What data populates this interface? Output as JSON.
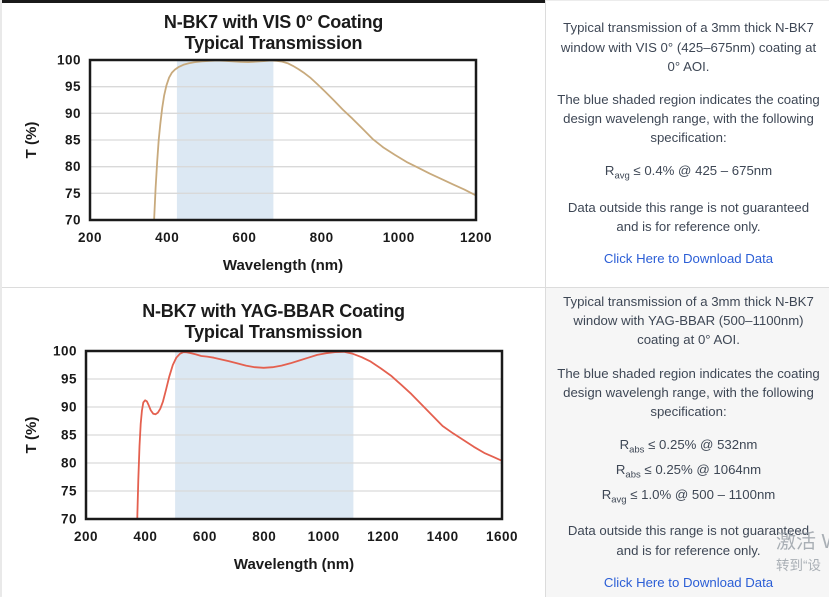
{
  "colors": {
    "shade": "#dce8f3",
    "grid": "#d9d9d9",
    "frame": "#1a1a1a",
    "curve_vis": "#c8aa7d",
    "curve_yag": "#e4604f",
    "link": "#2b5ed6",
    "body_text": "#3e4755",
    "shaded_panel_bg": "#f6f6f6"
  },
  "panels": {
    "vis": {
      "title_line1": "N-BK7 with VIS 0° Coating",
      "title_line2": "Typical Transmission",
      "desc_p1": "Typical transmission of a 3mm thick N-BK7 window with VIS 0° (425–675nm) coating at 0° AOI.",
      "desc_p2": "The blue shaded region indicates the coating design wavelengh range, with the following specification:",
      "specs": [
        {
          "r": "R",
          "sub": "avg",
          "rest": " ≤ 0.4% @ 425 – 675nm"
        }
      ],
      "desc_p3": "Data outside this range is not guaranteed and is for reference only.",
      "link_label": "Click Here to Download Data"
    },
    "yag": {
      "title_line1": "N-BK7 with YAG-BBAR Coating",
      "title_line2": "Typical Transmission",
      "desc_p1": "Typical transmission of a 3mm thick N-BK7 window with YAG-BBAR (500–1100nm) coating at 0° AOI.",
      "desc_p2": "The blue shaded region indicates the coating design wavelengh range, with the following specification:",
      "specs": [
        {
          "r": "R",
          "sub": "abs",
          "rest": " ≤ 0.25% @ 532nm"
        },
        {
          "r": "R",
          "sub": "abs",
          "rest": " ≤ 0.25% @ 1064nm"
        },
        {
          "r": "R",
          "sub": "avg",
          "rest": " ≤ 1.0% @ 500 – 1100nm"
        }
      ],
      "desc_p3": "Data outside this range is not guaranteed and is for reference only.",
      "link_label": "Click Here to Download Data"
    }
  },
  "watermark": {
    "line1": "激活 W",
    "line2": "转到“设"
  },
  "chart_data": [
    {
      "type": "line",
      "title": "N-BK7 with VIS 0° Coating — Typical Transmission",
      "xlabel": "Wavelength (nm)",
      "ylabel": "T (%)",
      "xlim": [
        200,
        1200
      ],
      "ylim": [
        70,
        100
      ],
      "x_ticks": [
        200,
        400,
        600,
        800,
        1000,
        1200
      ],
      "y_ticks": [
        70,
        75,
        80,
        85,
        90,
        95,
        100
      ],
      "grid": true,
      "legend": "none",
      "shaded_region_nm": [
        425,
        675
      ],
      "series": [
        {
          "name": "VIS 0° coating transmission",
          "color": "#c8aa7d",
          "x": [
            364,
            366,
            370,
            374,
            378,
            382,
            387,
            392,
            398,
            405,
            412,
            420,
            430,
            442,
            456,
            472,
            490,
            510,
            530,
            550,
            570,
            590,
            610,
            630,
            650,
            668,
            684,
            698,
            712,
            726,
            740,
            756,
            772,
            790,
            810,
            832,
            855,
            880,
            905,
            932,
            960,
            990,
            1020,
            1050,
            1080,
            1110,
            1140,
            1170,
            1200
          ],
          "y": [
            66,
            70,
            76,
            81,
            85,
            88,
            91,
            93.3,
            95.2,
            96.7,
            97.6,
            98.2,
            98.7,
            99.1,
            99.4,
            99.6,
            99.75,
            99.85,
            99.9,
            99.85,
            99.75,
            99.65,
            99.6,
            99.7,
            99.8,
            99.9,
            99.85,
            99.7,
            99.4,
            98.9,
            98.3,
            97.5,
            96.6,
            95.4,
            94,
            92.4,
            90.7,
            89,
            87.2,
            85.2,
            83.6,
            82.2,
            80.9,
            79.8,
            78.7,
            77.7,
            76.7,
            75.7,
            74.6
          ]
        }
      ]
    },
    {
      "type": "line",
      "title": "N-BK7 with YAG-BBAR Coating — Typical Transmission",
      "xlabel": "Wavelength (nm)",
      "ylabel": "T (%)",
      "xlim": [
        200,
        1600
      ],
      "ylim": [
        70,
        100
      ],
      "x_ticks": [
        200,
        400,
        600,
        800,
        1000,
        1200,
        1400,
        1600
      ],
      "y_ticks": [
        70,
        75,
        80,
        85,
        90,
        95,
        100
      ],
      "grid": true,
      "legend": "none",
      "shaded_region_nm": [
        500,
        1100
      ],
      "series": [
        {
          "name": "YAG-BBAR coating transmission",
          "color": "#e4604f",
          "x": [
            371,
            373,
            376,
            380,
            384,
            388,
            393,
            399,
            405,
            411,
            418,
            426,
            434,
            442,
            450,
            459,
            469,
            480,
            492,
            504,
            516,
            528,
            540,
            554,
            570,
            588,
            608,
            630,
            654,
            680,
            708,
            738,
            768,
            798,
            828,
            858,
            888,
            918,
            948,
            978,
            1008,
            1038,
            1068,
            1098,
            1128,
            1158,
            1192,
            1226,
            1260,
            1295,
            1330,
            1365,
            1400,
            1435,
            1470,
            1505,
            1540,
            1570,
            1600
          ],
          "y": [
            66,
            71,
            77,
            83,
            87,
            89.3,
            90.8,
            91.2,
            91,
            90.3,
            89.4,
            88.8,
            88.7,
            89,
            89.7,
            91,
            93,
            95.4,
            97.5,
            98.8,
            99.5,
            99.8,
            99.75,
            99.6,
            99.4,
            99.1,
            99,
            98.8,
            98.5,
            98.2,
            97.8,
            97.4,
            97.1,
            97,
            97.1,
            97.4,
            97.8,
            98.3,
            98.8,
            99.3,
            99.6,
            99.8,
            99.85,
            99.5,
            98.9,
            98.1,
            96.9,
            95.6,
            94,
            92.3,
            90.4,
            88.5,
            86.6,
            85.3,
            84.1,
            82.9,
            81.8,
            81.1,
            80.4
          ]
        }
      ]
    }
  ]
}
